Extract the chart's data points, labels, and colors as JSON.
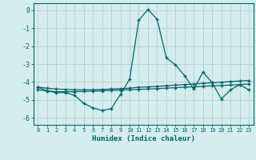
{
  "title": "",
  "xlabel": "Humidex (Indice chaleur)",
  "background_color": "#d6eded",
  "grid_color": "#b8d4d4",
  "line_color": "#006666",
  "x": [
    0,
    1,
    2,
    3,
    4,
    5,
    6,
    7,
    8,
    9,
    10,
    11,
    12,
    13,
    14,
    15,
    16,
    17,
    18,
    19,
    20,
    21,
    22,
    23
  ],
  "line1": [
    -4.3,
    -4.5,
    -4.6,
    -4.6,
    -4.75,
    -5.2,
    -5.45,
    -5.6,
    -5.5,
    -4.7,
    -3.85,
    -0.55,
    0.05,
    -0.5,
    -2.65,
    -3.05,
    -3.65,
    -4.4,
    -3.45,
    -4.05,
    -4.95,
    -4.45,
    -4.15,
    -4.45
  ],
  "line2": [
    -4.3,
    -4.35,
    -4.4,
    -4.42,
    -4.44,
    -4.44,
    -4.44,
    -4.42,
    -4.4,
    -4.38,
    -4.35,
    -4.3,
    -4.28,
    -4.25,
    -4.22,
    -4.18,
    -4.15,
    -4.12,
    -4.08,
    -4.05,
    -4.02,
    -3.98,
    -3.95,
    -3.92
  ],
  "line3": [
    -4.45,
    -4.5,
    -4.55,
    -4.55,
    -4.55,
    -4.53,
    -4.52,
    -4.5,
    -4.48,
    -4.46,
    -4.44,
    -4.42,
    -4.4,
    -4.38,
    -4.35,
    -4.32,
    -4.3,
    -4.28,
    -4.25,
    -4.22,
    -4.2,
    -4.18,
    -4.15,
    -4.12
  ],
  "ylim": [
    -6.4,
    0.4
  ],
  "yticks": [
    0,
    -1,
    -2,
    -3,
    -4,
    -5,
    -6
  ],
  "xlim": [
    -0.5,
    23.5
  ]
}
